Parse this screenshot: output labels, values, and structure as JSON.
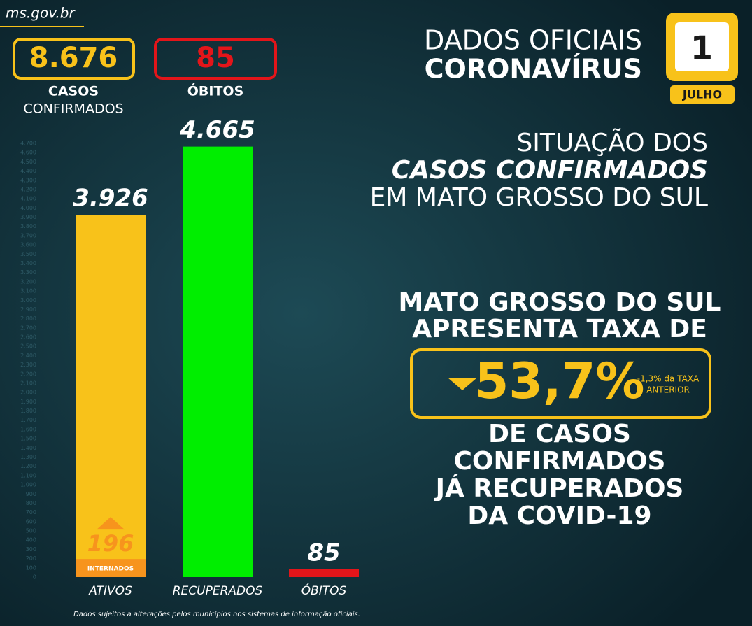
{
  "site": "ms.gov.br",
  "stats": [
    {
      "value": "8.676",
      "label": [
        "CASOS",
        "CONFIRMADOS"
      ]
    },
    {
      "value": "85",
      "label": [
        "ÓBITOS"
      ]
    }
  ],
  "title": [
    "DADOS OFICIAIS",
    "CORONAVÍRUS"
  ],
  "date": {
    "day": "1",
    "month": "JULHO"
  },
  "subtitle": [
    "SITUAÇÃO DOS",
    "CASOS CONFIRMADOS",
    "EM MATO GROSSO DO SUL"
  ],
  "rate": {
    "intro": [
      "MATO GROSSO DO SUL",
      "APRESENTA TAXA DE"
    ],
    "value": "53,7%",
    "change": [
      "-1,3% da TAXA",
      "ANTERIOR"
    ],
    "outro": [
      "DE CASOS",
      "CONFIRMADOS",
      "JÁ RECUPERADOS",
      "DA COVID-19"
    ]
  },
  "footnote": "Dados sujeitos a alterações pelos municípios nos sistemas de informação oficiais.",
  "chart_data": {
    "type": "bar",
    "categories": [
      "ATIVOS",
      "RECUPERADOS",
      "ÓBITOS"
    ],
    "values": [
      3926,
      4665,
      85
    ],
    "value_labels": [
      "3.926",
      "4.665",
      "85"
    ],
    "colors": [
      "#f8c21a",
      "#00ee00",
      "#e3151a"
    ],
    "hospitalized": {
      "value": 196,
      "label": "INTERNADOS",
      "color": "#f7941d"
    },
    "ylim": [
      0,
      4700
    ],
    "yticks": [
      0,
      100,
      200,
      300,
      400,
      500,
      600,
      700,
      800,
      900,
      {
        "value": 1000,
        "label": "1.000"
      },
      {
        "value": 1100,
        "label": "1.100"
      },
      {
        "value": 1200,
        "label": "1.200"
      },
      {
        "value": 1300,
        "label": "1.300"
      },
      {
        "value": 1400,
        "label": "1.400"
      },
      {
        "value": 1500,
        "label": "1.500"
      },
      {
        "value": 1600,
        "label": "1.600"
      },
      {
        "value": 1700,
        "label": "1.700"
      },
      {
        "value": 1800,
        "label": "1.800"
      },
      {
        "value": 1900,
        "label": "1.900"
      },
      {
        "value": 2000,
        "label": "2.000"
      },
      {
        "value": 2100,
        "label": "2.100"
      },
      {
        "value": 2200,
        "label": "2.200"
      },
      {
        "value": 2300,
        "label": "2.300"
      },
      {
        "value": 2400,
        "label": "2.400"
      },
      {
        "value": 2500,
        "label": "2.500"
      },
      {
        "value": 2600,
        "label": "2.600"
      },
      {
        "value": 2700,
        "label": "2.700"
      },
      {
        "value": 2800,
        "label": "2.800"
      },
      {
        "value": 2900,
        "label": "2.900"
      },
      {
        "value": 3000,
        "label": "3.000"
      },
      {
        "value": 3100,
        "label": "3.100"
      },
      {
        "value": 3200,
        "label": "3.200"
      },
      {
        "value": 3300,
        "label": "3.300"
      },
      {
        "value": 3400,
        "label": "3.400"
      },
      {
        "value": 3500,
        "label": "3.500"
      },
      {
        "value": 3600,
        "label": "3.600"
      },
      {
        "value": 3700,
        "label": "3.700"
      },
      {
        "value": 3800,
        "label": "3.800"
      },
      {
        "value": 3900,
        "label": "3.900"
      },
      {
        "value": 4000,
        "label": "4.000"
      },
      {
        "value": 4100,
        "label": "4.100"
      },
      {
        "value": 4200,
        "label": "4.200"
      },
      {
        "value": 4300,
        "label": "4.300"
      },
      {
        "value": 4400,
        "label": "4.400"
      },
      {
        "value": 4500,
        "label": "4.500"
      },
      {
        "value": 4600,
        "label": "4.600"
      },
      {
        "value": 4700,
        "label": "4.700"
      }
    ],
    "grid": false
  }
}
